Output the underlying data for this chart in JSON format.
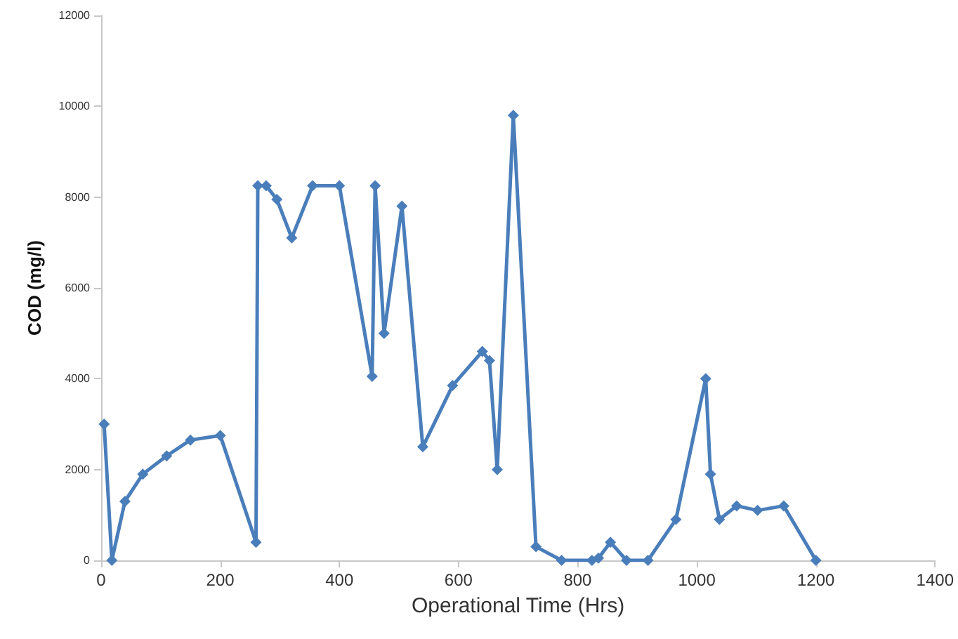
{
  "chart_data": {
    "type": "line",
    "xlabel": "Operational Time (Hrs)",
    "ylabel": "COD (mg/l)",
    "x": [
      5,
      18,
      40,
      70,
      110,
      150,
      200,
      260,
      263,
      277,
      295,
      320,
      355,
      400,
      455,
      460,
      475,
      505,
      540,
      590,
      640,
      652,
      665,
      692,
      730,
      773,
      824,
      835,
      855,
      882,
      918,
      965,
      1015,
      1023,
      1038,
      1067,
      1102,
      1146,
      1200
    ],
    "series": [
      {
        "color": "#4a7ebb",
        "values": [
          3000,
          0,
          1300,
          1900,
          2300,
          2650,
          2750,
          400,
          8250,
          8250,
          7950,
          7100,
          8250,
          8250,
          4050,
          8250,
          5000,
          7800,
          2500,
          3850,
          4600,
          4400,
          2000,
          9800,
          300,
          0,
          0,
          50,
          400,
          0,
          0,
          900,
          4000,
          1900,
          900,
          1200,
          1100,
          1200,
          0
        ]
      }
    ],
    "xlim": [
      0,
      1400
    ],
    "xticks": [
      0,
      200,
      400,
      600,
      800,
      1000,
      1200,
      1400
    ],
    "ylim": [
      0,
      12000
    ],
    "yticks": [
      0,
      2000,
      4000,
      6000,
      8000,
      10000,
      12000
    ],
    "grid": false,
    "marker": "diamond",
    "line_style": "solid"
  }
}
